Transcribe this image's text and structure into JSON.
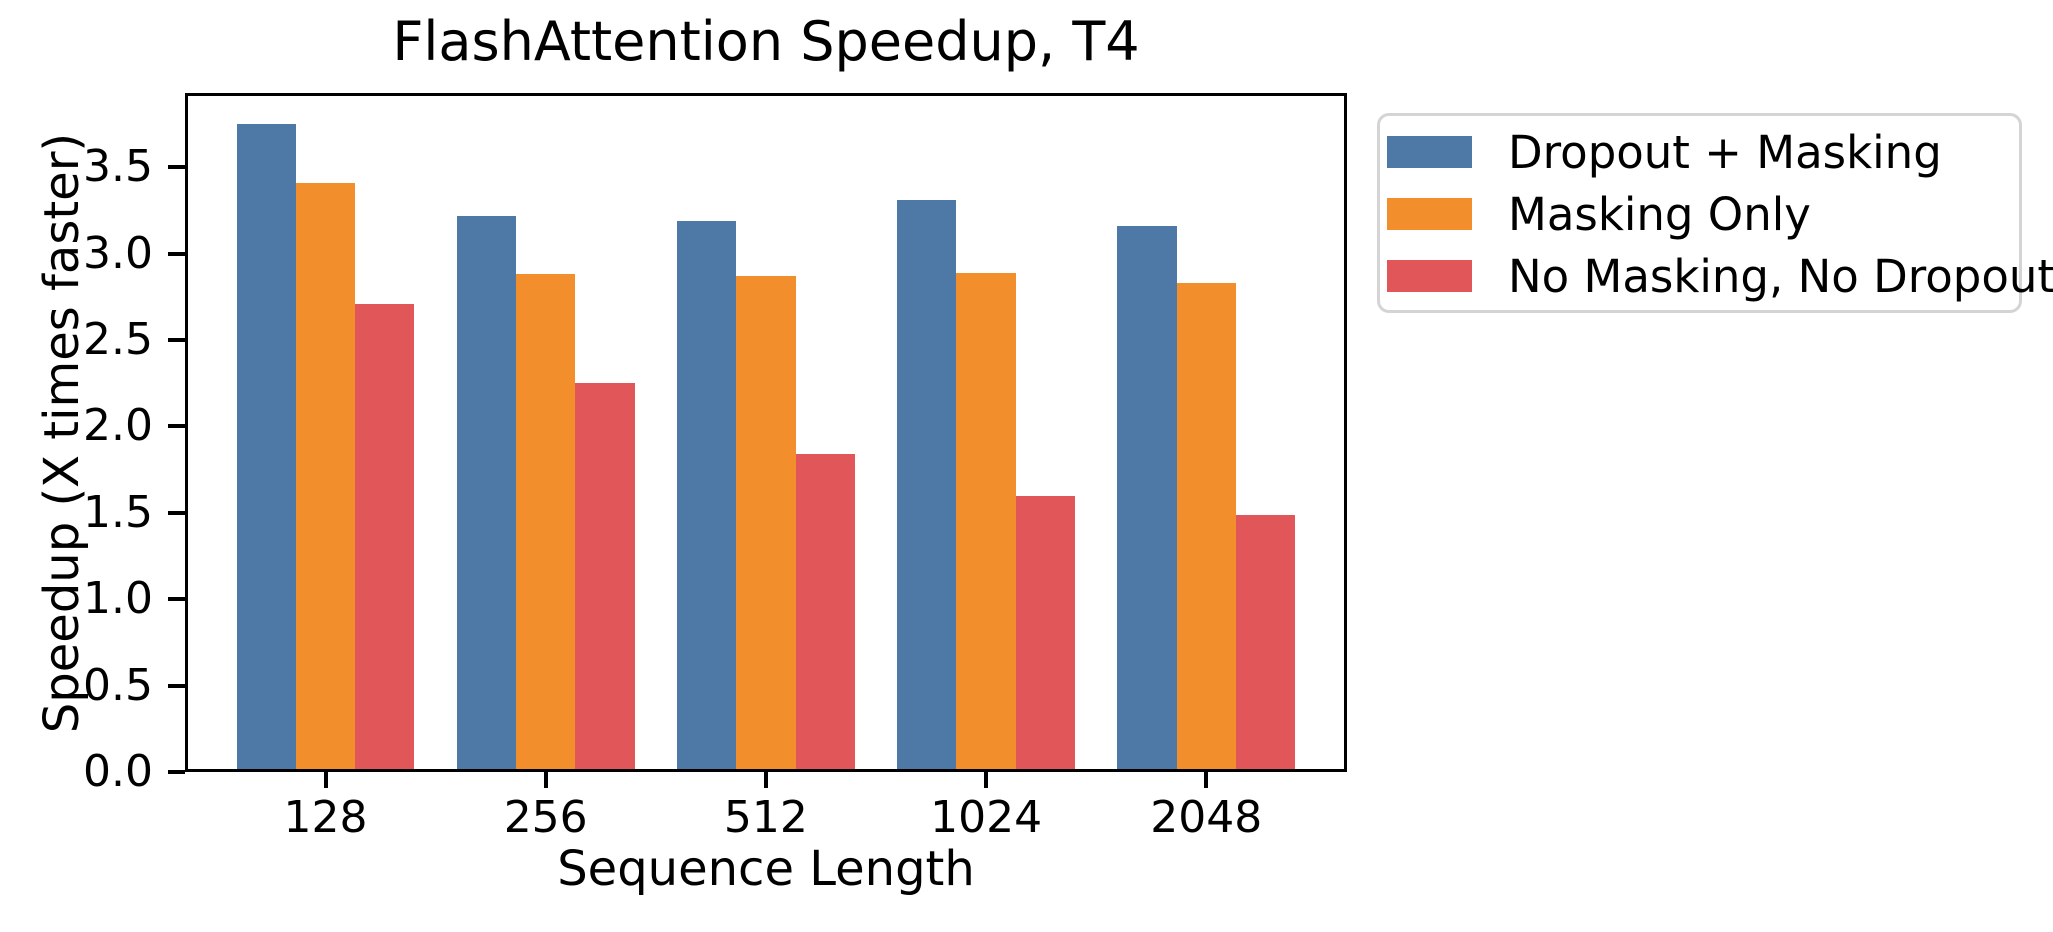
{
  "chart_data": {
    "type": "bar",
    "title": "FlashAttention Speedup, T4",
    "xlabel": "Sequence Length",
    "ylabel": "Speedup (X times faster)",
    "categories": [
      "128",
      "256",
      "512",
      "1024",
      "2048"
    ],
    "series": [
      {
        "name": "Dropout + Masking",
        "color": "#4E79A7",
        "values": [
          3.75,
          3.22,
          3.19,
          3.31,
          3.16
        ]
      },
      {
        "name": "Masking Only",
        "color": "#F28E2B",
        "values": [
          3.41,
          2.88,
          2.87,
          2.89,
          2.83
        ]
      },
      {
        "name": "No Masking, No Dropout",
        "color": "#E15759",
        "values": [
          2.71,
          2.25,
          1.84,
          1.6,
          1.49
        ]
      }
    ],
    "y_ticks": [
      "0.0",
      "0.5",
      "1.0",
      "1.5",
      "2.0",
      "2.5",
      "3.0",
      "3.5"
    ],
    "ylim": [
      0,
      3.93
    ],
    "grid": false,
    "legend_position": "outside-upper-right"
  },
  "colors": {
    "axis": "#000000",
    "background": "#ffffff",
    "legend_border": "#d4d4d4"
  }
}
